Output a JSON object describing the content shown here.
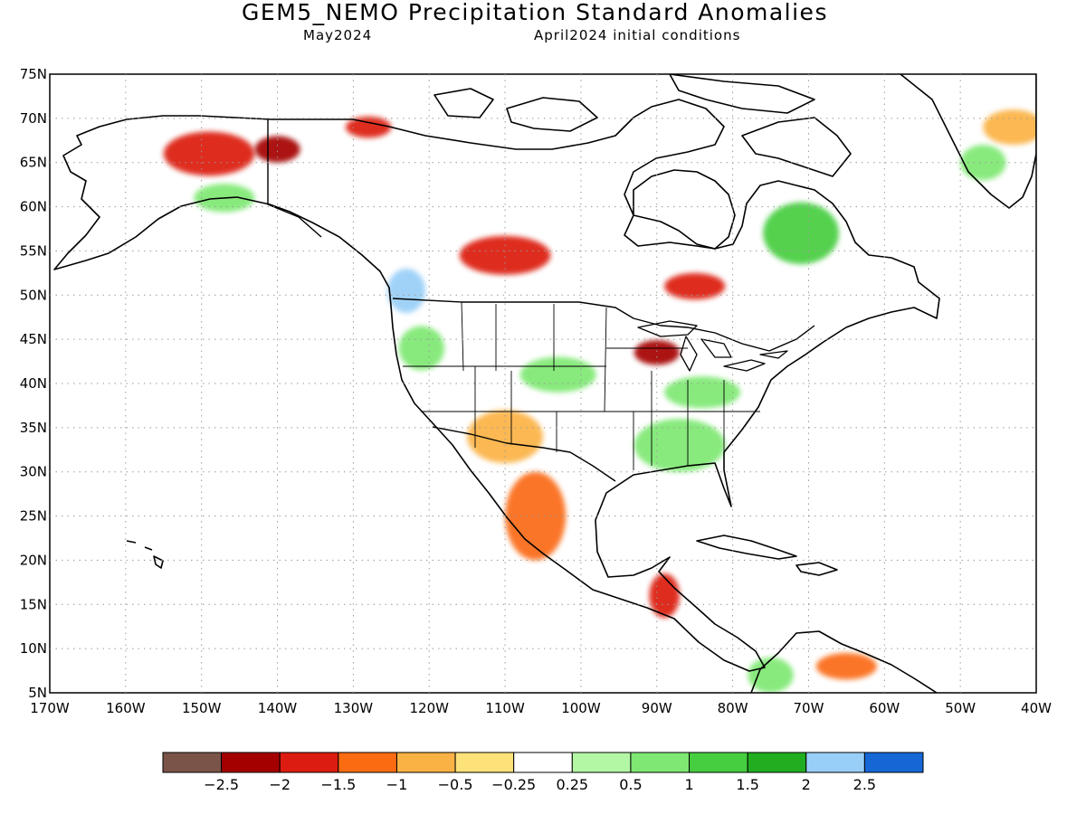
{
  "header": {
    "title": "GEM5_NEMO Precipitation Standard Anomalies",
    "valid_month": "May2024",
    "initial_conditions": "April2024 initial conditions"
  },
  "map": {
    "lat_labels": [
      "75N",
      "70N",
      "65N",
      "60N",
      "55N",
      "50N",
      "45N",
      "40N",
      "35N",
      "30N",
      "25N",
      "20N",
      "15N",
      "10N",
      "5N"
    ],
    "lon_labels": [
      "170W",
      "160W",
      "150W",
      "140W",
      "130W",
      "120W",
      "110W",
      "100W",
      "90W",
      "80W",
      "70W",
      "60W",
      "50W",
      "40W"
    ],
    "lat_range": [
      5,
      75
    ],
    "lon_range": [
      -170,
      -40
    ],
    "land_color": "#ffffff",
    "grid": "dotted"
  },
  "colorbar": {
    "colors": [
      "#7a5448",
      "#a50000",
      "#dc1c10",
      "#fa6b12",
      "#fbb244",
      "#fde27a",
      "#ffffff",
      "#b3f7a5",
      "#7ee872",
      "#46ce40",
      "#20ad20",
      "#98cff8",
      "#1567d6"
    ],
    "tick_labels": [
      "-2.5",
      "-2",
      "-1.5",
      "-1",
      "-0.5",
      "-0.25",
      "0.25",
      "0.5",
      "1",
      "1.5",
      "2",
      "2.5"
    ]
  },
  "anomaly_regions": [
    {
      "name": "alaska-dry",
      "lon": -149,
      "lat": 66,
      "rx": 6,
      "ry": 2.5,
      "category": -1.75
    },
    {
      "name": "alaska-wet",
      "lon": -147,
      "lat": 61,
      "rx": 4,
      "ry": 1.6,
      "category": 0.75
    },
    {
      "name": "yukon-dry",
      "lon": -140,
      "lat": 66.5,
      "rx": 3,
      "ry": 1.5,
      "category": -2.25
    },
    {
      "name": "nw-territories-dry",
      "lon": -128,
      "lat": 69,
      "rx": 3,
      "ry": 1.2,
      "category": -1.75
    },
    {
      "name": "bc-wet",
      "lon": -123,
      "lat": 50.5,
      "rx": 2.5,
      "ry": 2.5,
      "category": 2.25
    },
    {
      "name": "prairie-dry",
      "lon": -110,
      "lat": 54.5,
      "rx": 6,
      "ry": 2.2,
      "category": -1.75
    },
    {
      "name": "ontario-dry",
      "lon": -85,
      "lat": 51,
      "rx": 4,
      "ry": 1.5,
      "category": -1.75
    },
    {
      "name": "great-lakes-dry",
      "lon": -90,
      "lat": 43.5,
      "rx": 3,
      "ry": 1.4,
      "category": -2.0
    },
    {
      "name": "quebec-wet",
      "lon": -71,
      "lat": 57,
      "rx": 5,
      "ry": 3.5,
      "category": 1.25
    },
    {
      "name": "greenland-dry",
      "lon": -43,
      "lat": 69,
      "rx": 4,
      "ry": 2,
      "category": -0.75
    },
    {
      "name": "greenland-wet",
      "lon": -47,
      "lat": 65,
      "rx": 3,
      "ry": 2,
      "category": 0.75
    },
    {
      "name": "pacific-nw-wet",
      "lon": -121,
      "lat": 44,
      "rx": 3,
      "ry": 2.5,
      "category": 0.75
    },
    {
      "name": "central-plains-wet",
      "lon": -103,
      "lat": 41,
      "rx": 5,
      "ry": 2,
      "category": 0.75
    },
    {
      "name": "southwest-dry",
      "lon": -110,
      "lat": 34,
      "rx": 5,
      "ry": 3,
      "category": -0.75
    },
    {
      "name": "mexico-dry",
      "lon": -106,
      "lat": 25,
      "rx": 4,
      "ry": 5,
      "category": -1.25
    },
    {
      "name": "southeast-wet",
      "lon": -87,
      "lat": 33,
      "rx": 6,
      "ry": 3,
      "category": 0.75
    },
    {
      "name": "ohio-valley-wet",
      "lon": -84,
      "lat": 39,
      "rx": 5,
      "ry": 1.8,
      "category": 0.75
    },
    {
      "name": "central-america-dry",
      "lon": -89,
      "lat": 16,
      "rx": 2,
      "ry": 2.5,
      "category": -1.75
    },
    {
      "name": "colombia-wet",
      "lon": -75,
      "lat": 7,
      "rx": 3,
      "ry": 2,
      "category": 0.75
    },
    {
      "name": "venezuela-dry",
      "lon": -65,
      "lat": 8,
      "rx": 4,
      "ry": 1.5,
      "category": -1.25
    }
  ]
}
